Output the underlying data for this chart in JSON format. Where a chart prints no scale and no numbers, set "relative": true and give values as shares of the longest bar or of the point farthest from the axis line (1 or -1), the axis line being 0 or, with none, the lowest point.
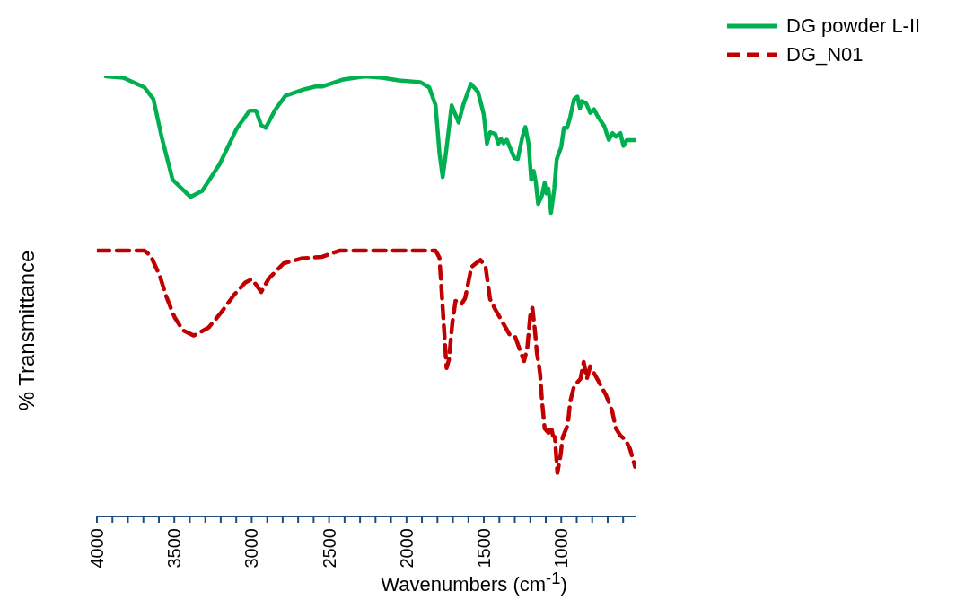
{
  "chart_data": {
    "type": "line",
    "relative": true,
    "xlabel": "Wavenumbers (cm$^{-1}$)",
    "ylabel": "% Transmittance",
    "xlim": [
      4000,
      520
    ],
    "xticks": [
      4000,
      {
        "value": 3900,
        "label": null
      },
      {
        "value": 3800,
        "label": null
      },
      {
        "value": 3700,
        "label": null
      },
      {
        "value": 3600,
        "label": null
      },
      3500,
      {
        "value": 3400,
        "label": null
      },
      {
        "value": 3300,
        "label": null
      },
      {
        "value": 3200,
        "label": null
      },
      {
        "value": 3100,
        "label": null
      },
      3000,
      {
        "value": 2900,
        "label": null
      },
      {
        "value": 2800,
        "label": null
      },
      {
        "value": 2700,
        "label": null
      },
      {
        "value": 2600,
        "label": null
      },
      2500,
      {
        "value": 2400,
        "label": null
      },
      {
        "value": 2300,
        "label": null
      },
      {
        "value": 2200,
        "label": null
      },
      {
        "value": 2100,
        "label": null
      },
      2000,
      {
        "value": 1900,
        "label": null
      },
      {
        "value": 1800,
        "label": null
      },
      {
        "value": 1700,
        "label": null
      },
      {
        "value": 1600,
        "label": null
      },
      1500,
      {
        "value": 1400,
        "label": null
      },
      {
        "value": 1300,
        "label": null
      },
      {
        "value": 1200,
        "label": null
      },
      {
        "value": 1100,
        "label": null
      },
      1000,
      {
        "value": 900,
        "label": null
      },
      {
        "value": 800,
        "label": null
      },
      {
        "value": 700,
        "label": null
      },
      {
        "value": 600,
        "label": null
      }
    ],
    "grid": false,
    "legend": "top right",
    "marker": "none",
    "series": [
      {
        "name": "DG powder L-II",
        "color": "#00b050",
        "line_style": "solid",
        "x": [
          3942,
          3830,
          3693,
          3635,
          3581,
          3511,
          3395,
          3320,
          3208,
          3097,
          3014,
          2972,
          2939,
          2910,
          2848,
          2782,
          2724,
          2657,
          2587,
          2545,
          2409,
          2268,
          2160,
          2048,
          1911,
          1853,
          1812,
          1787,
          1766,
          1745,
          1708,
          1663,
          1634,
          1584,
          1538,
          1501,
          1480,
          1460,
          1426,
          1406,
          1389,
          1373,
          1352,
          1302,
          1281,
          1252,
          1232,
          1211,
          1194,
          1178,
          1165,
          1149,
          1124,
          1107,
          1095,
          1083,
          1066,
          1045,
          1029,
          1000,
          983,
          962,
          942,
          917,
          896,
          879,
          867,
          838,
          813,
          788,
          763,
          722,
          693,
          668,
          647,
          618,
          598,
          577,
          523
        ],
        "values": [
          1.0,
          0.997,
          0.975,
          0.948,
          0.861,
          0.765,
          0.726,
          0.74,
          0.8,
          0.881,
          0.922,
          0.922,
          0.889,
          0.883,
          0.924,
          0.956,
          0.963,
          0.971,
          0.977,
          0.977,
          0.993,
          1.0,
          0.997,
          0.991,
          0.987,
          0.975,
          0.934,
          0.826,
          0.771,
          0.826,
          0.934,
          0.895,
          0.934,
          0.983,
          0.965,
          0.914,
          0.847,
          0.873,
          0.869,
          0.847,
          0.858,
          0.848,
          0.856,
          0.814,
          0.812,
          0.861,
          0.885,
          0.847,
          0.765,
          0.785,
          0.761,
          0.71,
          0.73,
          0.758,
          0.734,
          0.745,
          0.69,
          0.745,
          0.812,
          0.84,
          0.883,
          0.883,
          0.908,
          0.948,
          0.954,
          0.927,
          0.944,
          0.938,
          0.917,
          0.925,
          0.908,
          0.887,
          0.856,
          0.871,
          0.863,
          0.871,
          0.842,
          0.855,
          0.855
        ]
      },
      {
        "name": "DG_N01",
        "color": "#c00000",
        "line_style": "dashed",
        "x": [
          4000,
          3693,
          3652,
          3594,
          3552,
          3499,
          3445,
          3374,
          3279,
          3196,
          3113,
          3043,
          3001,
          2972,
          2939,
          2889,
          2794,
          2682,
          2545,
          2433,
          2048,
          1812,
          1787,
          1766,
          1741,
          1725,
          1704,
          1683,
          1646,
          1621,
          1580,
          1522,
          1489,
          1460,
          1426,
          1385,
          1335,
          1302,
          1273,
          1240,
          1219,
          1198,
          1186,
          1169,
          1157,
          1144,
          1136,
          1124,
          1107,
          1083,
          1066,
          1054,
          1041,
          1025,
          1004,
          991,
          958,
          942,
          917,
          875,
          855,
          834,
          813,
          751,
          710,
          672,
          647,
          618,
          585,
          556,
          523
        ],
        "values": [
          0.604,
          0.604,
          0.592,
          0.547,
          0.5,
          0.453,
          0.423,
          0.411,
          0.429,
          0.464,
          0.504,
          0.531,
          0.539,
          0.527,
          0.51,
          0.541,
          0.575,
          0.586,
          0.59,
          0.604,
          0.604,
          0.604,
          0.588,
          0.474,
          0.337,
          0.357,
          0.439,
          0.49,
          0.482,
          0.496,
          0.567,
          0.583,
          0.567,
          0.494,
          0.47,
          0.445,
          0.414,
          0.412,
          0.384,
          0.353,
          0.384,
          0.465,
          0.474,
          0.419,
          0.371,
          0.343,
          0.322,
          0.261,
          0.2,
          0.19,
          0.205,
          0.184,
          0.18,
          0.099,
          0.14,
          0.18,
          0.208,
          0.261,
          0.296,
          0.313,
          0.351,
          0.313,
          0.341,
          0.302,
          0.275,
          0.241,
          0.2,
          0.184,
          0.174,
          0.154,
          0.113
        ]
      }
    ]
  }
}
